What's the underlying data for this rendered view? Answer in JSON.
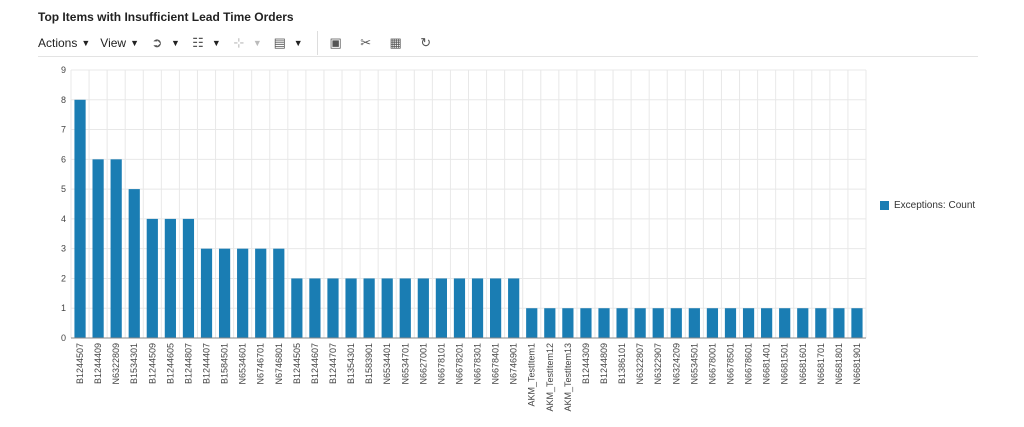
{
  "title": "Top Items with Insufficient Lead Time Orders",
  "toolbar": {
    "actions_label": "Actions",
    "view_label": "View"
  },
  "colors": {
    "bar": "#1a7db3",
    "grid": "#e8e8e8",
    "axis": "#888888"
  },
  "chart_data": {
    "type": "bar",
    "categories": [
      "B1244507",
      "B1244409",
      "N6322809",
      "B1534301",
      "B1244509",
      "B1244605",
      "B1244807",
      "B1244407",
      "B1584501",
      "N6534601",
      "N6746701",
      "N6746801",
      "B1244505",
      "B1244607",
      "B1244707",
      "B1354301",
      "B1583901",
      "N6534401",
      "N6534701",
      "N6627001",
      "N6678101",
      "N6678201",
      "N6678301",
      "N6678401",
      "N6746901",
      "AKM_TestItem1",
      "AKM_TestItem12",
      "AKM_TestItem13",
      "B1244309",
      "B1244809",
      "B1386101",
      "N6322807",
      "N6322907",
      "N6324209",
      "N6534501",
      "N6678001",
      "N6678501",
      "N6678601",
      "N6681401",
      "N6681501",
      "N6681601",
      "N6681701",
      "N6681801",
      "N6681901"
    ],
    "series": [
      {
        "name": "Exceptions: Count",
        "values": [
          8,
          6,
          6,
          5,
          4,
          4,
          4,
          3,
          3,
          3,
          3,
          3,
          2,
          2,
          2,
          2,
          2,
          2,
          2,
          2,
          2,
          2,
          2,
          2,
          2,
          1,
          1,
          1,
          1,
          1,
          1,
          1,
          1,
          1,
          1,
          1,
          1,
          1,
          1,
          1,
          1,
          1,
          1,
          1
        ]
      }
    ],
    "ylim": [
      0,
      9
    ],
    "yticks": [
      0,
      1,
      2,
      3,
      4,
      5,
      6,
      7,
      8,
      9
    ],
    "grid": true,
    "legend_position": "right",
    "xlabel": "",
    "ylabel": ""
  }
}
